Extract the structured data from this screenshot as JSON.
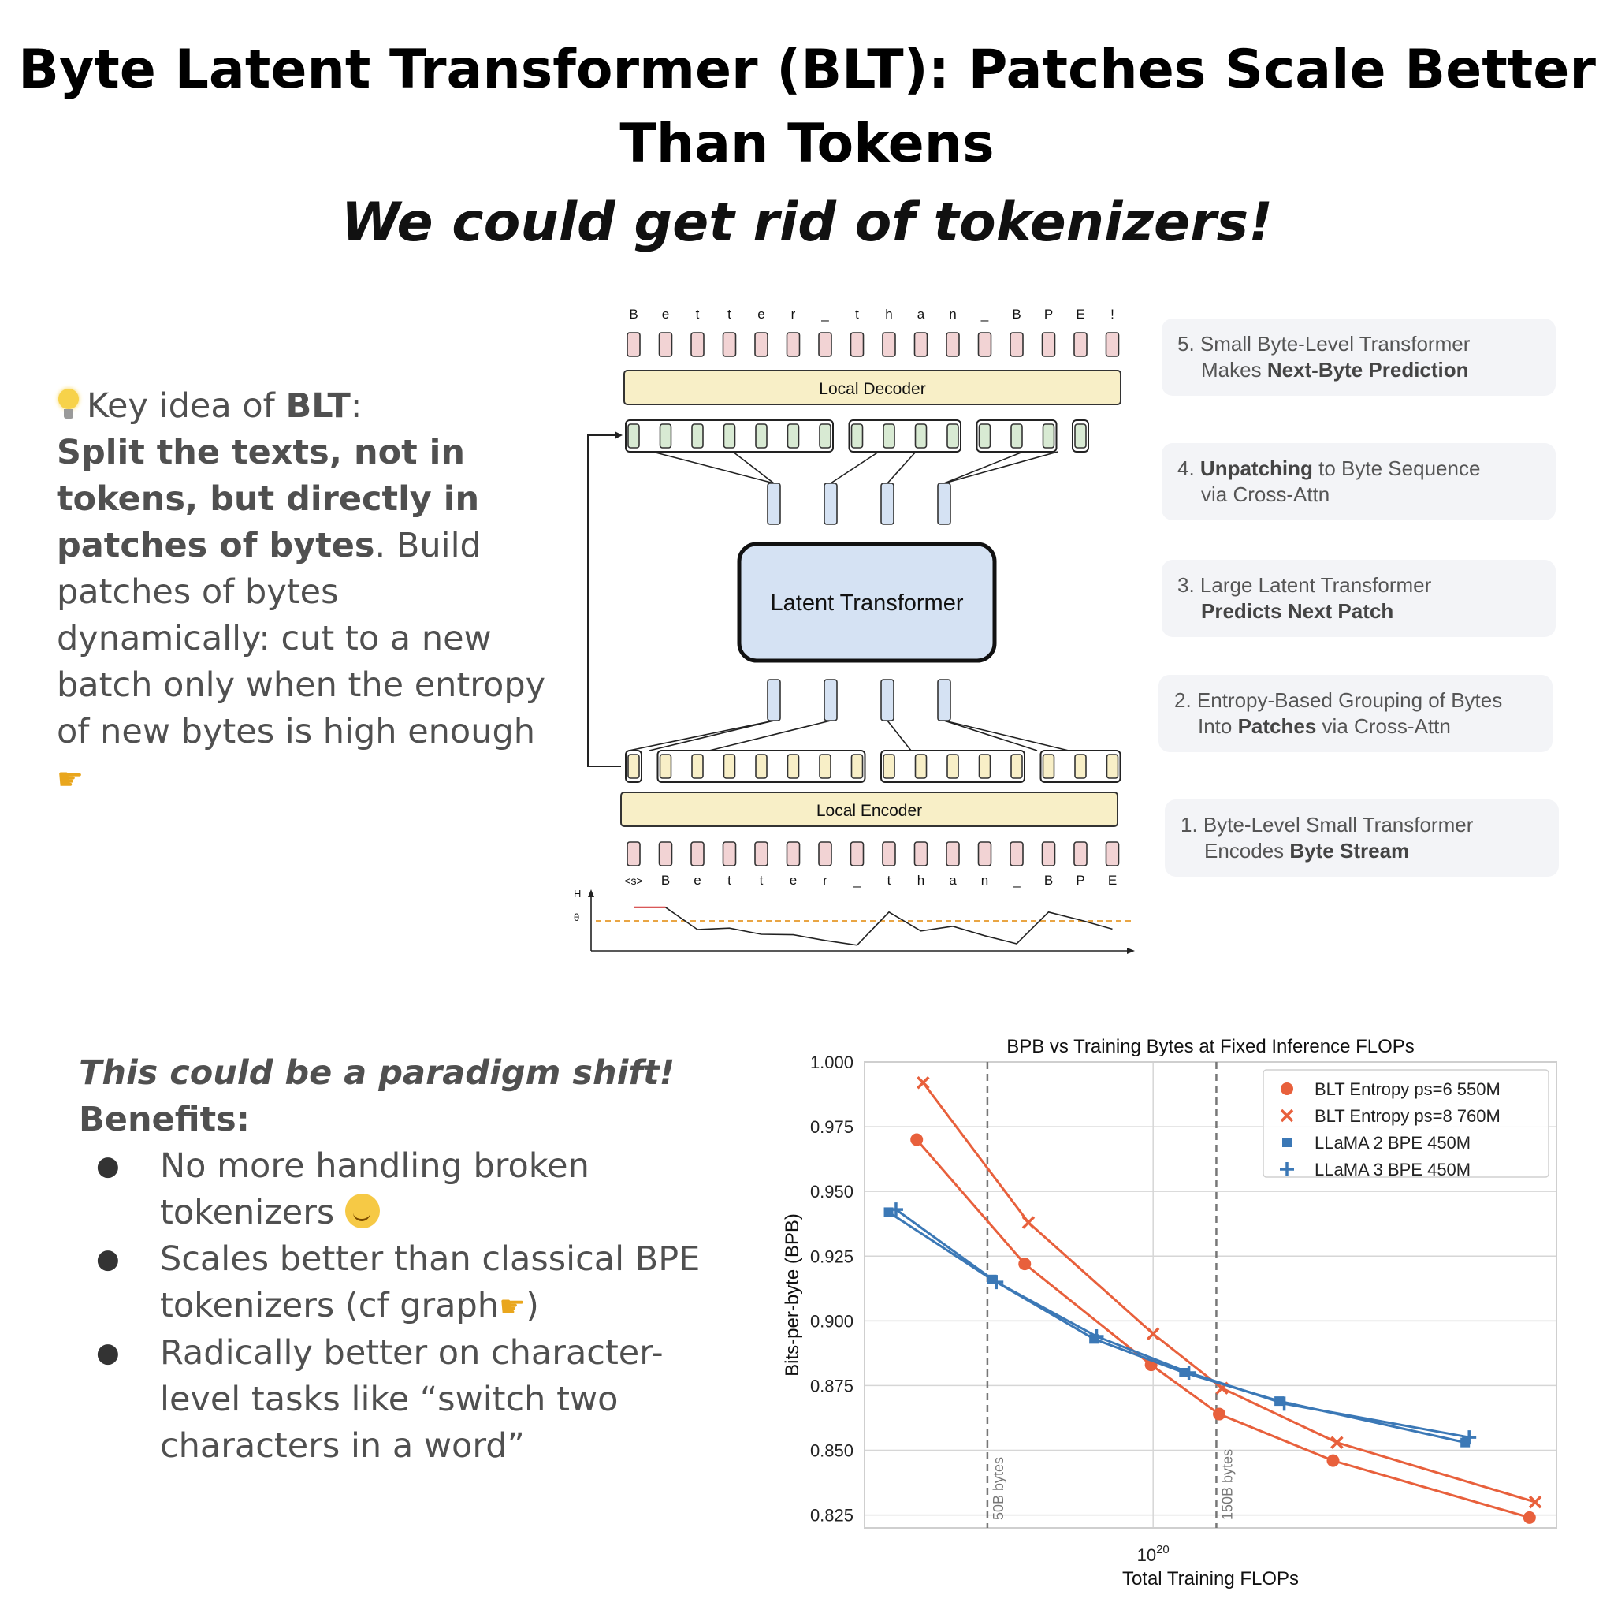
{
  "header": {
    "title_line1": "Byte Latent Transformer (BLT): Patches Scale Better",
    "title_line2": "Than Tokens",
    "subtitle": "We could get rid of tokenizers!"
  },
  "key_idea": {
    "prefix": "Key idea of ",
    "blt": "BLT",
    "colon": ":",
    "bold_text": "Split the texts, not in tokens, but directly in patches of bytes",
    "rest_text": ". Build patches of bytes dynamically: cut to a new batch only when the entropy of new bytes is high enough",
    "bulb_icon": "lightbulb-icon",
    "point_icon": "pointing-right-icon"
  },
  "diagram": {
    "top_chars": [
      "B",
      "e",
      "t",
      "t",
      "e",
      "r",
      "_",
      "t",
      "h",
      "a",
      "n",
      "_",
      "B",
      "P",
      "E",
      "!"
    ],
    "bottom_chars": [
      "<s>",
      "B",
      "e",
      "t",
      "t",
      "e",
      "r",
      "_",
      "t",
      "h",
      "a",
      "n",
      "_",
      "B",
      "P",
      "E"
    ],
    "local_decoder": "Local Decoder",
    "local_encoder": "Local Encoder",
    "latent_transformer": "Latent Transformer",
    "entropy_h": "H",
    "entropy_theta": "θ",
    "entropy": [
      0.82,
      0.82,
      0.35,
      0.38,
      0.25,
      0.24,
      0.12,
      0.02,
      0.72,
      0.32,
      0.42,
      0.22,
      0.05,
      0.72,
      0.55,
      0.36
    ],
    "threshold": 0.6,
    "colors": {
      "byte": "#f2d3d4",
      "encoder": "#f8efc7",
      "decoder": "#f8efc7",
      "latent": "#d5e2f3",
      "patch_green": "#d8ead3",
      "patch_yellow": "#f8efc7",
      "threshold": "#e9a544"
    }
  },
  "steps": [
    {
      "pre": "5. Small Byte-Level Transformer",
      "l2_pre": "Makes ",
      "l2_bold": "Next-Byte Prediction",
      "l2_post": ""
    },
    {
      "pre": "4. ",
      "bold": "Unpatching",
      "post": " to Byte Sequence",
      "l2_pre": "via Cross-Attn",
      "l2_bold": "",
      "l2_post": ""
    },
    {
      "pre": "3. Large Latent Transformer",
      "l2_pre": "",
      "l2_bold": "Predicts Next Patch",
      "l2_post": ""
    },
    {
      "pre": "2. Entropy-Based Grouping of Bytes",
      "l2_pre": "Into ",
      "l2_bold": "Patches",
      "l2_post": " via Cross-Attn"
    },
    {
      "pre": "1. Byte-Level Small Transformer",
      "l2_pre": "Encodes ",
      "l2_bold": "Byte Stream",
      "l2_post": ""
    }
  ],
  "benefits": {
    "heading": "This could be a paradigm shift!",
    "subheading": "Benefits:",
    "items": [
      {
        "text": "No more handling broken tokenizers",
        "icon": "party-face-icon"
      },
      {
        "text": "Scales better than classical BPE tokenizers (cf graph",
        "suffix": ")",
        "icon": "pointing-right-icon"
      },
      {
        "text": "Radically better on character-level tasks like “switch two characters in a word”"
      }
    ]
  },
  "chart_data": {
    "type": "line",
    "title": "BPB vs Training Bytes at Fixed Inference FLOPs",
    "xlabel": "Total Training FLOPs",
    "ylabel": "Bits-per-byte (BPB)",
    "x_scale": "log",
    "x_tick_label": "10",
    "x_tick_exp": "20",
    "x_tick_value": 1e+20,
    "ylim": [
      0.82,
      1.0
    ],
    "xlim": [
      2.3e+19,
      7.8e+20
    ],
    "y_ticks": [
      "1.000",
      "0.975",
      "0.950",
      "0.925",
      "0.900",
      "0.875",
      "0.850",
      "0.825"
    ],
    "y_tick_values": [
      1.0,
      0.975,
      0.95,
      0.925,
      0.9,
      0.875,
      0.85,
      0.825
    ],
    "grid": true,
    "legend_position": "top-right",
    "vlines": [
      {
        "x": 4.3e+19,
        "label": "50B bytes"
      },
      {
        "x": 1.38e+20,
        "label": "150B bytes"
      }
    ],
    "series": [
      {
        "name": "BLT Entropy ps=6 550M",
        "color": "#e8603c",
        "marker": "circle",
        "x": [
          3e+19,
          5.2e+19,
          9.9e+19,
          1.4e+20,
          2.5e+20,
          6.8e+20
        ],
        "y": [
          0.97,
          0.922,
          0.883,
          0.864,
          0.846,
          0.824
        ]
      },
      {
        "name": "BLT Entropy ps=8 760M",
        "color": "#e8603c",
        "marker": "x",
        "x": [
          3.1e+19,
          5.3e+19,
          1e+20,
          1.42e+20,
          2.55e+20,
          7e+20
        ],
        "y": [
          0.992,
          0.938,
          0.895,
          0.874,
          0.853,
          0.83
        ]
      },
      {
        "name": "LLaMA 2 BPE 450M",
        "color": "#3b78b6",
        "marker": "square",
        "x": [
          2.6e+19,
          4.4e+19,
          7.4e+19,
          1.17e+20,
          1.9e+20,
          4.9e+20
        ],
        "y": [
          0.942,
          0.916,
          0.893,
          0.88,
          0.869,
          0.853
        ]
      },
      {
        "name": "LLaMA 3 BPE 450M",
        "color": "#3b78b6",
        "marker": "plus",
        "x": [
          2.7e+19,
          4.5e+19,
          7.5e+19,
          1.2e+20,
          1.95e+20,
          5e+20
        ],
        "y": [
          0.943,
          0.915,
          0.894,
          0.88,
          0.868,
          0.855
        ]
      }
    ]
  }
}
